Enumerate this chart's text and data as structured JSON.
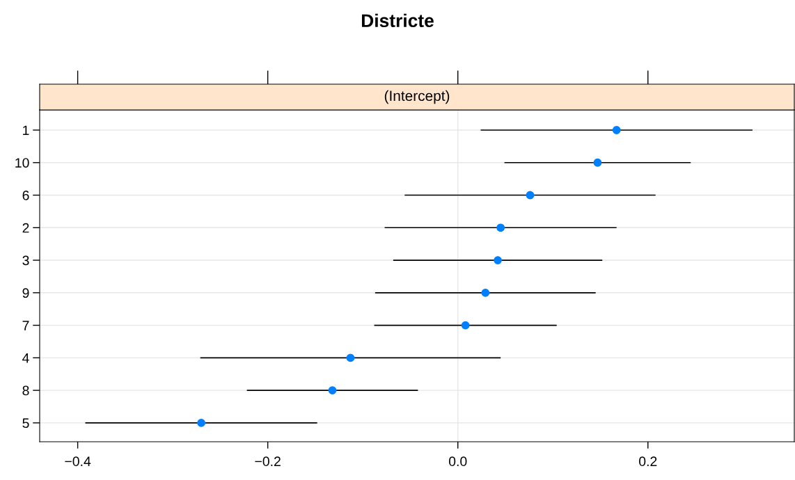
{
  "chart_data": {
    "type": "scatter",
    "orientation": "horizontal",
    "title": "Districte",
    "subtitle": "(Intercept)",
    "categories": [
      "1",
      "10",
      "6",
      "2",
      "3",
      "9",
      "7",
      "4",
      "8",
      "5"
    ],
    "values": [
      0.167,
      0.147,
      0.076,
      0.045,
      0.042,
      0.029,
      0.008,
      -0.113,
      -0.132,
      -0.27
    ],
    "errors": [
      0.143,
      0.098,
      0.132,
      0.122,
      0.11,
      0.116,
      0.096,
      0.158,
      0.09,
      0.122
    ],
    "color": "#0080ff",
    "marker": "circle",
    "grid": "y",
    "xlim": [
      -0.44,
      0.354
    ],
    "xticks": [
      {
        "value": -0.4,
        "label": "−0.4"
      },
      {
        "value": -0.2,
        "label": "−0.2"
      },
      {
        "value": 0.0,
        "label": "0.0"
      },
      {
        "value": 0.2,
        "label": "0.2"
      }
    ],
    "ref_lines": [
      {
        "axis": "x",
        "value": 0.0,
        "color": "#e6e6e6"
      }
    ]
  }
}
